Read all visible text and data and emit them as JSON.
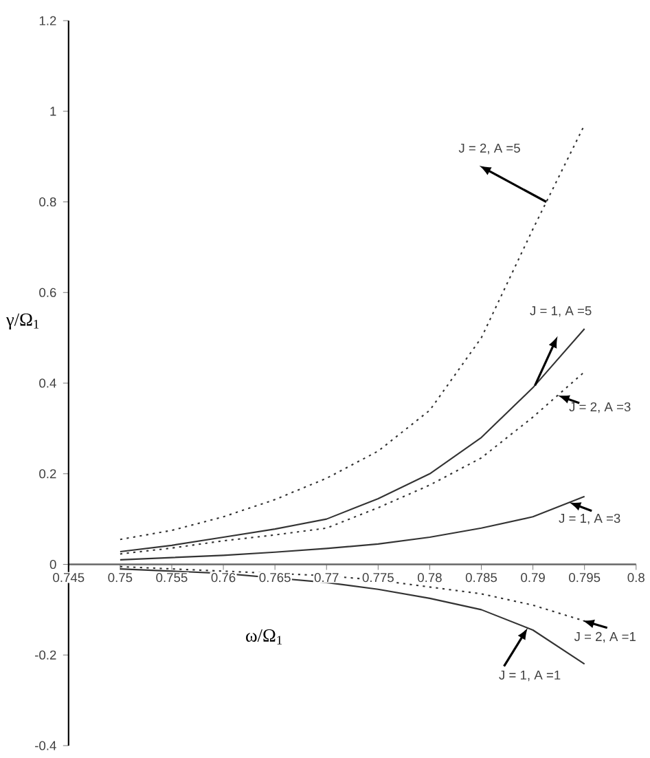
{
  "chart_data": {
    "type": "line",
    "xlabel": "ω/Ω$_{1}$",
    "ylabel": "γ/Ω$_{1}$",
    "x": [
      0.75,
      0.755,
      0.76,
      0.765,
      0.77,
      0.775,
      0.78,
      0.785,
      0.79,
      0.795
    ],
    "series": [
      {
        "color": "#333333",
        "line_style": "dotted",
        "values": [
          0.055,
          0.075,
          0.105,
          0.143,
          0.19,
          0.25,
          0.34,
          0.5,
          0.74,
          0.97
        ]
      },
      {
        "color": "#333333",
        "line_style": "solid",
        "values": [
          0.028,
          0.042,
          0.06,
          0.078,
          0.1,
          0.145,
          0.2,
          0.28,
          0.39,
          0.52
        ]
      },
      {
        "color": "#333333",
        "line_style": "dotted",
        "values": [
          0.023,
          0.036,
          0.052,
          0.065,
          0.08,
          0.125,
          0.175,
          0.235,
          0.325,
          0.425
        ]
      },
      {
        "color": "#333333",
        "line_style": "solid",
        "values": [
          0.01,
          0.015,
          0.02,
          0.027,
          0.035,
          0.045,
          0.06,
          0.08,
          0.105,
          0.15
        ]
      },
      {
        "color": "#333333",
        "line_style": "dotted",
        "values": [
          -0.005,
          -0.01,
          -0.015,
          -0.02,
          -0.025,
          -0.035,
          -0.05,
          -0.065,
          -0.09,
          -0.125
        ]
      },
      {
        "color": "#333333",
        "line_style": "solid",
        "values": [
          -0.01,
          -0.015,
          -0.02,
          -0.03,
          -0.04,
          -0.055,
          -0.075,
          -0.1,
          -0.145,
          -0.22
        ]
      }
    ],
    "annotations": [
      "J = 2, A =5",
      "J = 1, A =5",
      {
        "text": "J = 2, A =3",
        "x": 0.7924,
        "y": 0.373
      },
      {
        "text": "J = 1, A =3",
        "x": 0.7935,
        "y": 0.137
      },
      {
        "text": "J = 2, A =1",
        "x": 0.7948,
        "y": -0.124
      },
      {
        "text": "J = 1, A =1",
        "x": 0.7895,
        "y": -0.14
      }
    ],
    "xlim": [
      0.745,
      0.8
    ],
    "xticks": [
      0.745,
      0.75,
      0.755,
      0.76,
      0.765,
      0.77,
      0.775,
      0.78,
      0.785,
      0.79,
      0.795,
      0.8
    ],
    "ylim": [
      -0.4,
      1.2
    ],
    "yticks": [
      -0.4,
      -0.2,
      0,
      0.2,
      0.4,
      0.6,
      0.8,
      1,
      1.2
    ],
    "grid": false
  }
}
